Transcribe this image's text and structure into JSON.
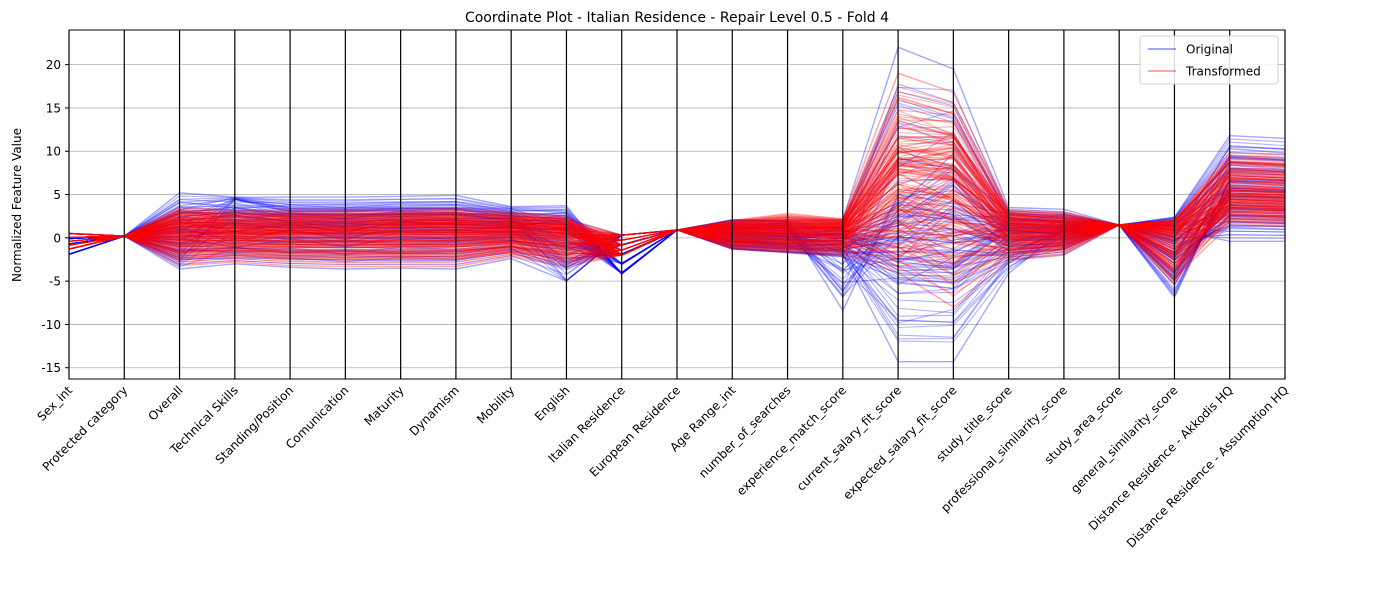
{
  "chart_data": {
    "type": "line",
    "title": "Coordinate Plot - Italian Residence - Repair Level 0.5 - Fold 4",
    "xlabel": "",
    "ylabel": "Normalized Feature Value",
    "ylim": [
      -16.3,
      24.0
    ],
    "yticks": [
      -15,
      -10,
      -5,
      0,
      5,
      10,
      15,
      20
    ],
    "grid": true,
    "legend_position": "top-right",
    "categories": [
      "Sex_int",
      "Protected category",
      "Overall",
      "Technical Skills",
      "Standing/Position",
      "Comunication",
      "Maturity",
      "Dynamism",
      "Mobility",
      "English",
      "Italian Residence",
      "European Residence",
      "Age Range_int",
      "number_of_searches",
      "experience_match_score",
      "current_salary_fit_score",
      "expected_salary_fit_score",
      "study_title_score",
      "professional_similarity_score",
      "study_area_score",
      "general_similarity_score",
      "Distance Residence - Akkodis HQ",
      "Distance Residence - Assumption HQ"
    ],
    "series": [
      {
        "name": "Original",
        "color": "#0000ff",
        "profiles": [
          [
            -1.9,
            0.2,
            5.2,
            4.7,
            4.7,
            4.7,
            4.8,
            4.9,
            3.6,
            3.7,
            -4.2,
            0.9,
            2.1,
            2.0,
            2.1,
            22.0,
            19.5,
            3.5,
            3.3,
            1.5,
            2.4,
            11.8,
            11.5
          ],
          [
            -1.9,
            0.2,
            3.7,
            4.5,
            3.5,
            3.5,
            3.5,
            3.5,
            3.3,
            2.9,
            -4.1,
            0.9,
            2.0,
            1.9,
            -8.4,
            5.0,
            4.0,
            2.8,
            2.1,
            1.5,
            2.2,
            10.3,
            9.8
          ],
          [
            0.5,
            0.2,
            -2.6,
            4.4,
            3.0,
            3.0,
            3.3,
            3.3,
            2.5,
            -4.9,
            0.3,
            0.9,
            -1.2,
            -1.6,
            -1.9,
            -14.3,
            -14.3,
            -4.1,
            1.0,
            1.5,
            -6.9,
            6.8,
            6.7
          ],
          [
            0.5,
            0.2,
            -3.6,
            -3.0,
            -3.4,
            -3.6,
            -3.5,
            -3.6,
            -2.4,
            -5.0,
            0.3,
            0.9,
            -1.3,
            -1.7,
            -2.2,
            -4.8,
            -5.2,
            -2.5,
            -1.9,
            1.5,
            -6.2,
            6.5,
            6.4
          ],
          [
            -1.9,
            0.2,
            2.0,
            2.5,
            2.0,
            1.8,
            2.1,
            2.0,
            1.8,
            1.4,
            -4.0,
            0.9,
            1.5,
            1.2,
            1.0,
            -2.0,
            -3.0,
            2.0,
            1.5,
            1.5,
            1.6,
            4.2,
            4.0
          ],
          [
            0.5,
            0.2,
            -1.5,
            -1.5,
            -1.7,
            -1.5,
            -1.8,
            -1.6,
            -1.0,
            -2.0,
            0.3,
            0.9,
            -0.8,
            -1.0,
            -1.2,
            1.5,
            2.5,
            -1.5,
            -0.8,
            1.5,
            -3.0,
            2.5,
            2.3
          ],
          [
            -1.9,
            0.2,
            0.5,
            0.8,
            0.4,
            0.6,
            0.3,
            0.5,
            0.4,
            0.2,
            -4.1,
            0.9,
            0.6,
            0.4,
            0.3,
            -3.8,
            -3.6,
            1.0,
            0.3,
            1.5,
            1.0,
            -0.4,
            -0.4
          ],
          [
            0.5,
            0.2,
            1.2,
            -0.5,
            1.0,
            -0.2,
            1.4,
            0.9,
            1.2,
            2.2,
            0.3,
            0.9,
            0.2,
            -0.3,
            0.6,
            3.5,
            9.8,
            0.5,
            0.7,
            1.5,
            -1.2,
            1.2,
            1.0
          ]
        ]
      },
      {
        "name": "Transformed",
        "color": "#ff0000",
        "profiles": [
          [
            -1.3,
            0.2,
            3.5,
            3.2,
            3.3,
            3.3,
            3.3,
            3.4,
            3.0,
            2.5,
            -2.0,
            0.9,
            2.0,
            2.8,
            2.2,
            19.0,
            16.8,
            3.2,
            3.0,
            1.5,
            2.1,
            9.8,
            9.6
          ],
          [
            -1.3,
            0.2,
            2.6,
            2.3,
            2.3,
            2.3,
            2.4,
            2.4,
            2.2,
            1.8,
            -2.0,
            0.9,
            1.9,
            2.3,
            2.0,
            12.7,
            12.0,
            2.6,
            2.4,
            1.5,
            1.9,
            8.8,
            8.5
          ],
          [
            -1.3,
            0.2,
            -3.2,
            -2.8,
            -3.2,
            -3.3,
            -3.3,
            -3.3,
            -2.2,
            -3.3,
            -2.0,
            0.9,
            -1.3,
            -1.7,
            -2.1,
            -4.0,
            -8.0,
            -2.6,
            -2.0,
            1.5,
            -5.4,
            5.9,
            5.6
          ],
          [
            0.5,
            0.2,
            1.8,
            1.5,
            1.6,
            1.5,
            1.6,
            1.6,
            1.5,
            1.2,
            0.3,
            0.9,
            1.2,
            1.5,
            1.4,
            10.5,
            11.5,
            2.0,
            1.5,
            1.5,
            1.2,
            5.2,
            4.9
          ],
          [
            0.5,
            0.2,
            -1.4,
            -1.2,
            -1.5,
            -1.4,
            -1.5,
            -1.4,
            -1.0,
            -1.6,
            0.3,
            0.9,
            -0.6,
            -1.0,
            -1.2,
            7.6,
            6.7,
            -1.0,
            -0.6,
            1.5,
            -3.3,
            4.0,
            3.8
          ],
          [
            -1.3,
            0.2,
            0.7,
            0.6,
            0.6,
            0.6,
            0.7,
            0.7,
            0.6,
            0.5,
            -2.0,
            0.9,
            0.7,
            0.8,
            0.7,
            2.0,
            -3.0,
            0.5,
            0.6,
            1.5,
            0.5,
            3.0,
            2.8
          ],
          [
            0.5,
            0.2,
            2.9,
            2.7,
            2.8,
            2.7,
            2.8,
            2.8,
            2.5,
            2.1,
            0.3,
            0.9,
            1.6,
            1.9,
            1.8,
            9.0,
            10.0,
            2.7,
            2.2,
            1.5,
            1.8,
            8.6,
            8.3
          ],
          [
            -1.3,
            0.2,
            -2.3,
            -2.0,
            -2.2,
            -2.3,
            -2.2,
            -2.2,
            -1.6,
            -2.5,
            -2.0,
            0.9,
            -1.0,
            -1.3,
            -1.6,
            -1.5,
            -2.0,
            -2.0,
            -1.2,
            1.5,
            -4.6,
            1.5,
            1.3
          ],
          [
            0.5,
            0.2,
            0.1,
            0.0,
            0.1,
            0.0,
            0.1,
            0.1,
            0.1,
            -0.1,
            0.3,
            0.9,
            0.0,
            0.1,
            0.0,
            8.0,
            7.0,
            0.2,
            0.1,
            1.5,
            -0.3,
            2.2,
            2.0
          ],
          [
            -1.3,
            0.2,
            1.3,
            1.1,
            1.2,
            1.1,
            1.2,
            1.2,
            1.1,
            0.9,
            -2.0,
            0.9,
            0.9,
            1.1,
            1.0,
            -2.5,
            3.5,
            1.3,
            1.0,
            1.5,
            0.8,
            4.5,
            4.3
          ]
        ]
      }
    ]
  }
}
